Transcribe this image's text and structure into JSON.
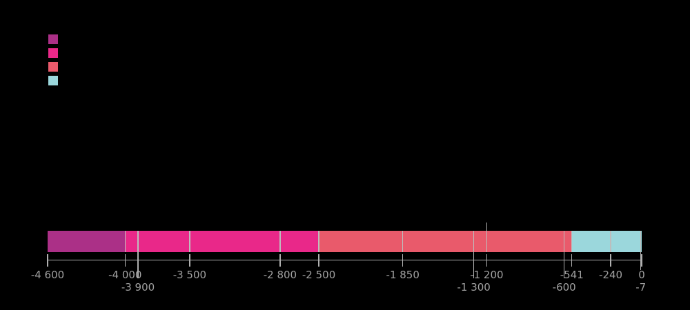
{
  "background": "#000000",
  "legend": {
    "swatches": [
      {
        "name": "legend-swatch-1",
        "color": "#AB3087"
      },
      {
        "name": "legend-swatch-2",
        "color": "#E92889"
      },
      {
        "name": "legend-swatch-3",
        "color": "#E95A6B"
      },
      {
        "name": "legend-swatch-4",
        "color": "#9BD7DC"
      }
    ]
  },
  "chart_data": {
    "type": "bar",
    "subtype": "horizontal-stacked-timeline",
    "title": "",
    "xlabel": "",
    "ylabel": "",
    "axis": {
      "min": -4600,
      "max": 0,
      "line_color": "#B0B0B0",
      "tick_label_color": "#A0A0A0",
      "separator_color": "#BDBDBD"
    },
    "segments": [
      {
        "from": -4600,
        "to": -4000,
        "color": "#AB3087"
      },
      {
        "from": -4000,
        "to": -2500,
        "color": "#E92889"
      },
      {
        "from": -2500,
        "to": -541,
        "color": "#E95A6B"
      },
      {
        "from": -541,
        "to": 0,
        "color": "#9BD7DC"
      }
    ],
    "separator_values": [
      -4000,
      -3900,
      -3500,
      -2800,
      -2500,
      -1850,
      -1300,
      -1200,
      -600,
      -541,
      -240,
      -7
    ],
    "ticks_row1": [
      {
        "value": -4600,
        "label": "-4 600"
      },
      {
        "value": -4000,
        "label": "-4 000"
      },
      {
        "value": -3500,
        "label": "-3 500"
      },
      {
        "value": -2800,
        "label": "-2 800"
      },
      {
        "value": -2500,
        "label": "-2 500"
      },
      {
        "value": -1850,
        "label": "-1 850"
      },
      {
        "value": -1200,
        "label": "-1 200"
      },
      {
        "value": -541,
        "label": "-541"
      },
      {
        "value": -240,
        "label": "-240"
      },
      {
        "value": 0,
        "label": "0"
      }
    ],
    "ticks_row2": [
      {
        "value": -3900,
        "label": "-3 900"
      },
      {
        "value": -1300,
        "label": "-1 300"
      },
      {
        "value": -600,
        "label": "-600"
      },
      {
        "value": -7,
        "label": "-7"
      }
    ],
    "callout": {
      "value": -1200
    }
  }
}
